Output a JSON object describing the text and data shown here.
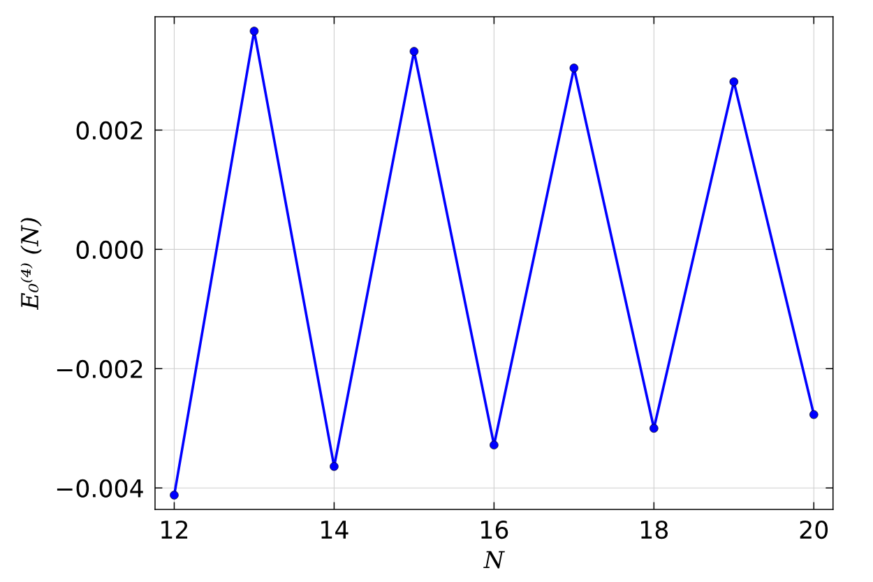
{
  "chart_data": {
    "type": "line",
    "xlabel": "N",
    "ylabel": "E₀⁽⁴⁾ (N)",
    "x": [
      12,
      13,
      14,
      15,
      16,
      17,
      18,
      19,
      20
    ],
    "series": [
      {
        "color": "#0000ff",
        "values": [
          -0.00412,
          0.00366,
          -0.00364,
          0.00332,
          -0.00328,
          0.00304,
          -0.003,
          0.00281,
          -0.00277
        ]
      }
    ],
    "xlim": [
      11.76,
      20.24
    ],
    "ylim": [
      -0.00436,
      0.0039
    ],
    "xticks": [
      12,
      14,
      16,
      18,
      20
    ],
    "yticks": [
      {
        "value": -0.004,
        "label": "−0.004"
      },
      {
        "value": -0.002,
        "label": "−0.002"
      },
      {
        "value": 0.0,
        "label": "0.000"
      },
      {
        "value": 0.002,
        "label": "0.002"
      }
    ],
    "grid": true,
    "marker": "circle",
    "line_style": "solid"
  }
}
